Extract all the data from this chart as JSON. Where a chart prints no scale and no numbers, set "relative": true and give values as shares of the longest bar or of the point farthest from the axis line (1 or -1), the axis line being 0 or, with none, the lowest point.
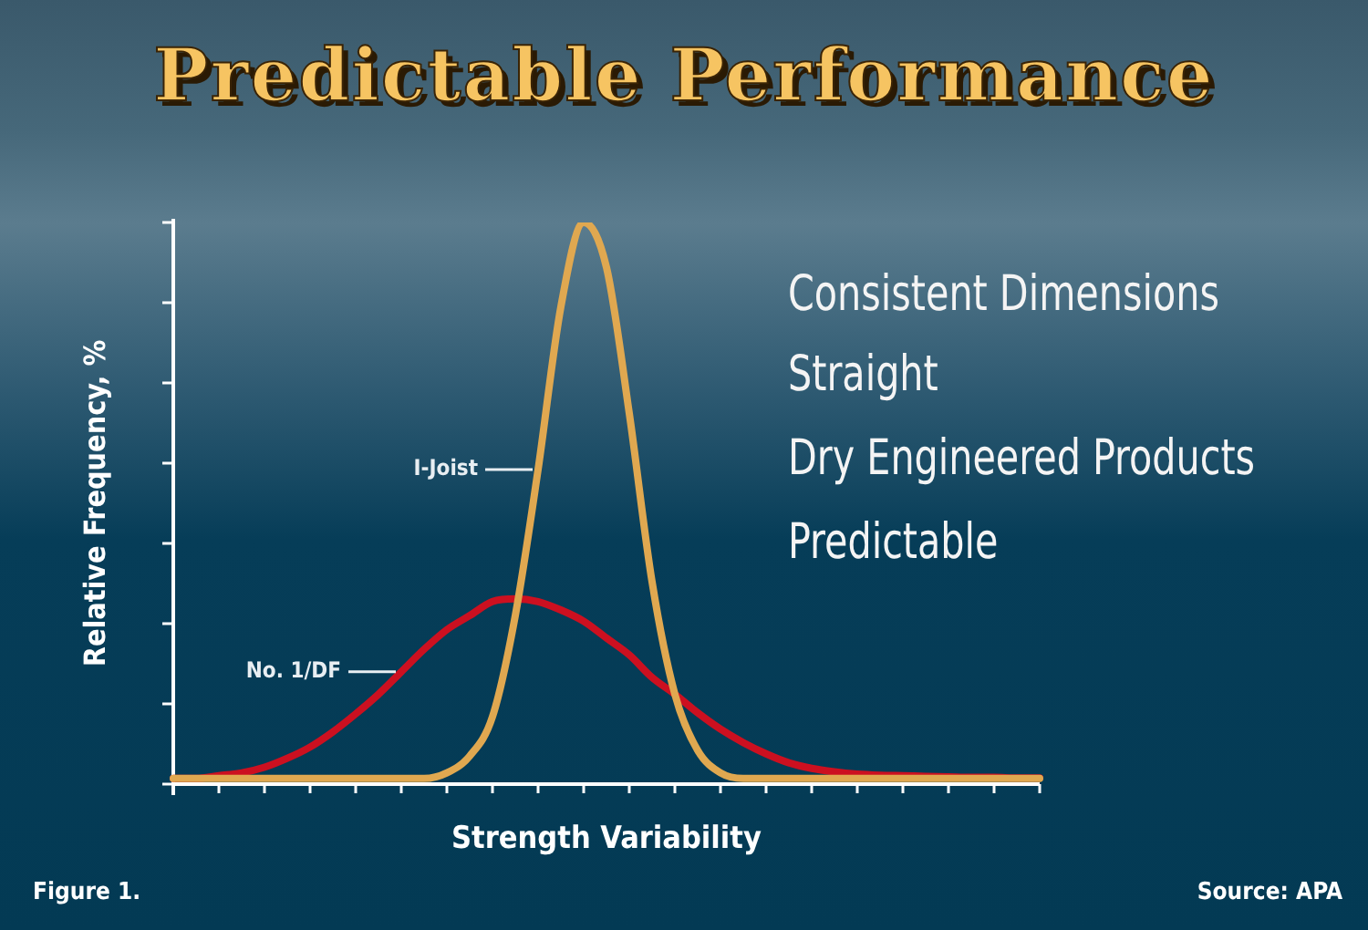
{
  "chart_data": {
    "type": "line",
    "title": "Predictable Performance",
    "xlabel": "Strength Variability",
    "ylabel": "Relative Frequency, %",
    "relative": true,
    "legend": false,
    "marker": "none",
    "line_style": "solid",
    "categories": [
      null,
      null,
      null,
      null,
      null,
      null,
      null,
      null,
      null,
      null,
      null,
      null,
      null,
      null,
      null,
      null,
      null,
      null,
      null,
      null,
      null,
      null,
      null,
      null,
      null,
      null,
      null,
      null,
      null,
      null,
      null,
      null,
      null,
      null,
      null,
      null,
      null,
      null,
      null
    ],
    "series": [
      {
        "name": "I-Joist",
        "color": "#e0a850",
        "values": [
          0.01,
          0.01,
          0.01,
          0.01,
          0.01,
          0.01,
          0.01,
          0.01,
          0.01,
          0.01,
          0.01,
          0.01,
          0.02,
          0.05,
          0.12,
          0.3,
          0.56,
          0.85,
          1,
          0.92,
          0.66,
          0.36,
          0.16,
          0.06,
          0.02,
          0.01,
          0.01,
          0.01,
          0.01,
          0.01,
          0.01,
          0.01,
          0.01,
          0.01,
          0.01,
          0.01,
          0.01,
          0.01,
          0.01
        ]
      },
      {
        "name": "No. 1/DF",
        "color": "#cc1020",
        "values": [
          0.01,
          0.01,
          0.015,
          0.02,
          0.03,
          0.046,
          0.066,
          0.093,
          0.125,
          0.16,
          0.2,
          0.24,
          0.275,
          0.3,
          0.325,
          0.33,
          0.325,
          0.31,
          0.29,
          0.26,
          0.23,
          0.19,
          0.16,
          0.127,
          0.098,
          0.074,
          0.054,
          0.038,
          0.028,
          0.022,
          0.018,
          0.016,
          0.015,
          0.014,
          0.013,
          0.012,
          0.012,
          0.011,
          0.011
        ]
      }
    ],
    "annotations": [
      "Consistent Dimensions",
      "Straight",
      "Dry Engineered Products",
      "Predictable",
      "Figure 1.",
      "Source: APA"
    ]
  }
}
